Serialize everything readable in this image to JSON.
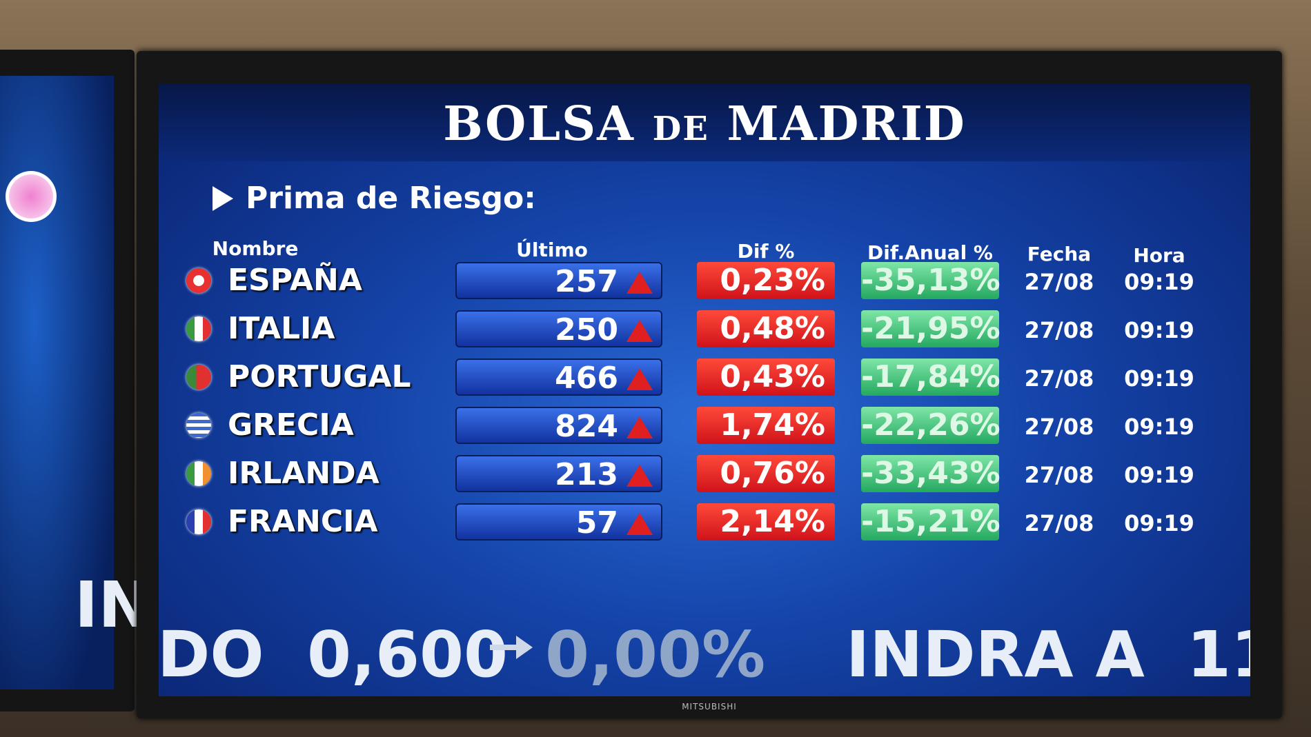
{
  "header": {
    "title": "BOLSA de MADRID",
    "section": "Prima de Riesgo:"
  },
  "table": {
    "columns": [
      "Nombre",
      "Último",
      "Dif %",
      "Dif.Anual %",
      "Fecha",
      "Hora"
    ],
    "rows": [
      [
        "ESPAÑA",
        "257",
        "0,23%",
        "-35,13%",
        "27/08",
        "09:19"
      ],
      [
        "ITALIA",
        "250",
        "0,48%",
        "-21,95%",
        "27/08",
        "09:19"
      ],
      [
        "PORTUGAL",
        "466",
        "0,43%",
        "-17,84%",
        "27/08",
        "09:19"
      ],
      [
        "GRECIA",
        "824",
        "1,74%",
        "-22,26%",
        "27/08",
        "09:19"
      ],
      [
        "IRLANDA",
        "213",
        "0,76%",
        "-33,43%",
        "27/08",
        "09:19"
      ],
      [
        "FRANCIA",
        "57",
        "2,14%",
        "-15,21%",
        "27/08",
        "09:19"
      ]
    ]
  },
  "ticker": {
    "left_a": "IN",
    "left_b": "DO",
    "price": "0,600",
    "change": "0,00%",
    "next": "INDRA A",
    "next_price": "11"
  },
  "bezel": {
    "brand": "MITSUBISHI"
  }
}
